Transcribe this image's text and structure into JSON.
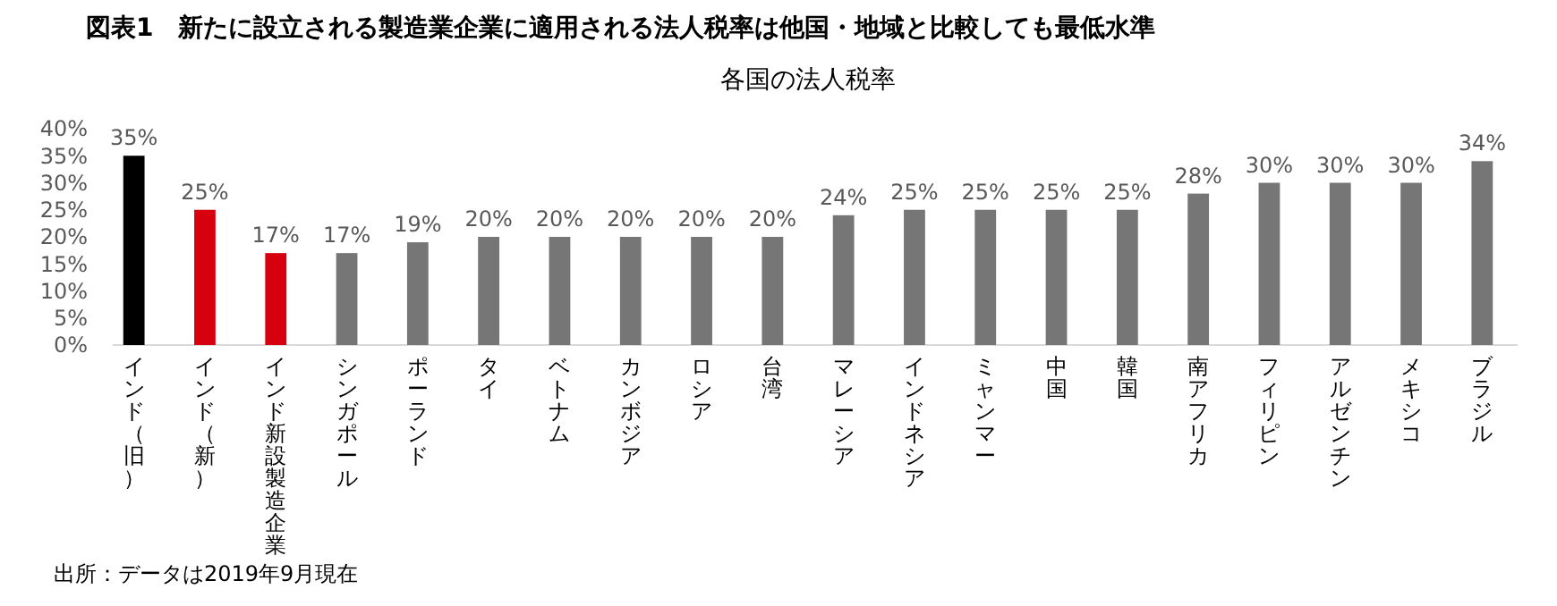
{
  "chart_data": {
    "type": "bar",
    "title": "図表1　新たに設立される製造業企業に適用される法人税率は他国・地域と比較しても最低水準",
    "subtitle": "各国の法人税率",
    "categories": [
      "インド（旧）",
      "インド（新）",
      "インド新設製造企業",
      "シンガポール",
      "ポーランド",
      "タイ",
      "ベトナム",
      "カンボジア",
      "ロシア",
      "台湾",
      "マレーシア",
      "インドネシア",
      "ミャンマー",
      "中国",
      "韓国",
      "南アフリカ",
      "フィリピン",
      "アルゼンチン",
      "メキシコ",
      "ブラジル"
    ],
    "values": [
      35,
      25,
      17,
      17,
      19,
      20,
      20,
      20,
      20,
      20,
      24,
      25,
      25,
      25,
      25,
      28,
      30,
      30,
      30,
      34
    ],
    "colors": [
      "#000000",
      "#d7000f",
      "#d7000f",
      "#767676",
      "#767676",
      "#767676",
      "#767676",
      "#767676",
      "#767676",
      "#767676",
      "#767676",
      "#767676",
      "#767676",
      "#767676",
      "#767676",
      "#767676",
      "#767676",
      "#767676",
      "#767676",
      "#767676"
    ],
    "value_labels": [
      "35%",
      "25%",
      "17%",
      "17%",
      "19%",
      "20%",
      "20%",
      "20%",
      "20%",
      "20%",
      "24%",
      "25%",
      "25%",
      "25%",
      "25%",
      "28%",
      "30%",
      "30%",
      "30%",
      "34%"
    ],
    "ylim": [
      0,
      40
    ],
    "yticks": [
      {
        "value": 0,
        "label": "0%"
      },
      {
        "value": 5,
        "label": "5%"
      },
      {
        "value": 10,
        "label": "10%"
      },
      {
        "value": 15,
        "label": "15%"
      },
      {
        "value": 20,
        "label": "20%"
      },
      {
        "value": 25,
        "label": "25%"
      },
      {
        "value": 30,
        "label": "30%"
      },
      {
        "value": 35,
        "label": "35%"
      },
      {
        "value": 40,
        "label": "40%"
      }
    ],
    "grid": false,
    "annotations": [
      "出所：データは2019年9月現在"
    ]
  }
}
